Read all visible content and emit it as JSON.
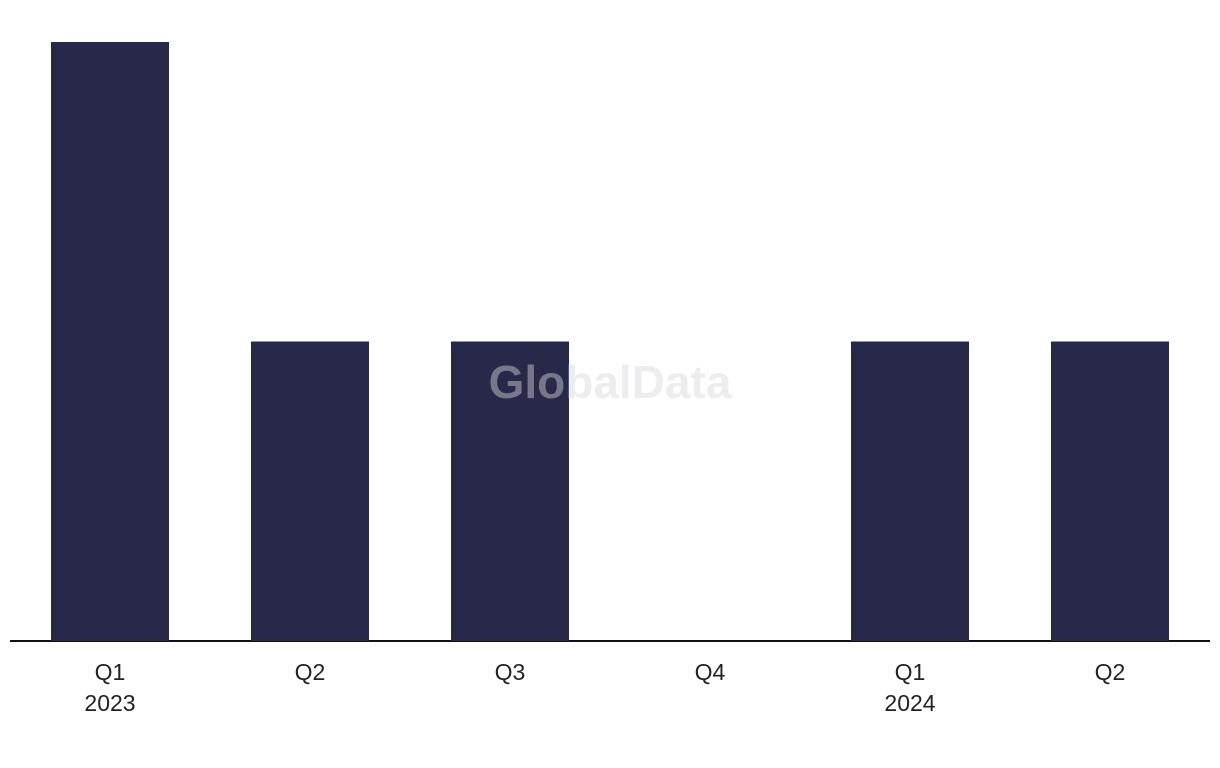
{
  "chart_data": {
    "type": "bar",
    "watermark": "GlobalData",
    "categories": [
      "Q1",
      "Q2",
      "Q3",
      "Q4",
      "Q1",
      "Q2"
    ],
    "years": [
      "2023",
      null,
      null,
      null,
      "2024",
      null
    ],
    "values": [
      2,
      1,
      1,
      0,
      1,
      1
    ],
    "color": "#282849"
  }
}
